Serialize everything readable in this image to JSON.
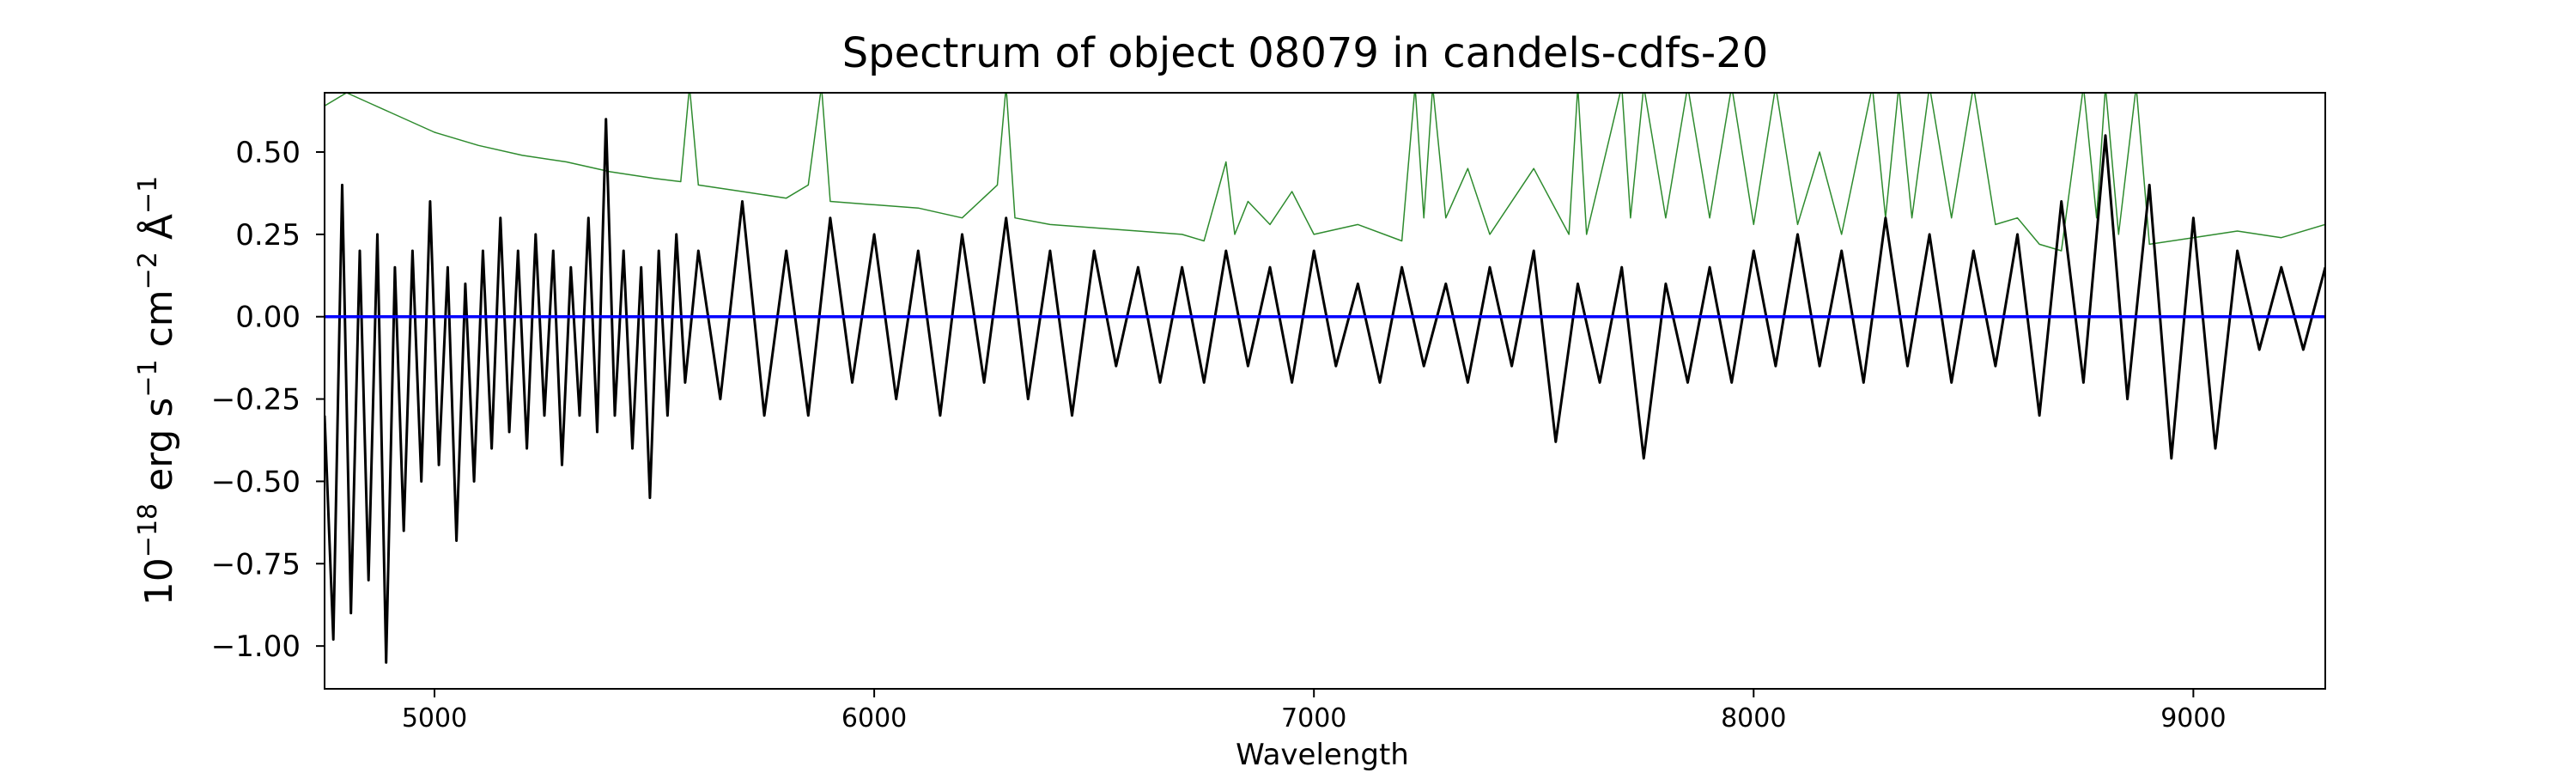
{
  "chart_data": {
    "type": "line",
    "title": "Spectrum of object 08079 in candels-cdfs-20",
    "xlabel": "Wavelength",
    "ylabel_base": "10",
    "ylabel_exp": "−18",
    "ylabel_units": [
      {
        "text": " erg s",
        "sup": "−1"
      },
      {
        "text": " cm",
        "sup": "−2"
      },
      {
        "text": " Å",
        "sup": "−1"
      }
    ],
    "xlim": [
      4750,
      9300
    ],
    "ylim": [
      -1.13,
      0.68
    ],
    "xticks": [
      5000,
      6000,
      7000,
      8000,
      9000
    ],
    "xtick_labels": [
      "5000",
      "6000",
      "7000",
      "8000",
      "9000"
    ],
    "yticks": [
      0.5,
      0.25,
      0.0,
      -0.25,
      -0.5,
      -0.75,
      -1.0
    ],
    "ytick_labels": [
      "0.50",
      "0.25",
      "0.00",
      "−0.25",
      "−0.50",
      "−0.75",
      "−1.00"
    ],
    "grid": false,
    "series": [
      {
        "role": "flux",
        "color": "#000000",
        "x": [
          4750,
          4770,
          4790,
          4810,
          4830,
          4850,
          4870,
          4890,
          4910,
          4930,
          4950,
          4970,
          4990,
          5010,
          5030,
          5050,
          5070,
          5090,
          5110,
          5130,
          5150,
          5170,
          5190,
          5210,
          5230,
          5250,
          5270,
          5290,
          5310,
          5330,
          5350,
          5370,
          5390,
          5410,
          5430,
          5450,
          5470,
          5490,
          5510,
          5530,
          5550,
          5570,
          5600,
          5650,
          5700,
          5750,
          5800,
          5850,
          5900,
          5950,
          6000,
          6050,
          6100,
          6150,
          6200,
          6250,
          6300,
          6350,
          6400,
          6450,
          6500,
          6550,
          6600,
          6650,
          6700,
          6750,
          6800,
          6850,
          6900,
          6950,
          7000,
          7050,
          7100,
          7150,
          7200,
          7250,
          7300,
          7350,
          7400,
          7450,
          7500,
          7550,
          7600,
          7650,
          7700,
          7750,
          7800,
          7850,
          7900,
          7950,
          8000,
          8050,
          8100,
          8150,
          8200,
          8250,
          8300,
          8350,
          8400,
          8450,
          8500,
          8550,
          8600,
          8650,
          8700,
          8750,
          8800,
          8850,
          8900,
          8950,
          9000,
          9050,
          9100,
          9150,
          9200,
          9250,
          9300
        ],
        "y": [
          -0.3,
          -0.98,
          0.4,
          -0.9,
          0.2,
          -0.8,
          0.25,
          -1.05,
          0.15,
          -0.65,
          0.2,
          -0.5,
          0.35,
          -0.45,
          0.15,
          -0.68,
          0.1,
          -0.5,
          0.2,
          -0.4,
          0.3,
          -0.35,
          0.2,
          -0.4,
          0.25,
          -0.3,
          0.2,
          -0.45,
          0.15,
          -0.3,
          0.3,
          -0.35,
          0.6,
          -0.3,
          0.2,
          -0.4,
          0.15,
          -0.55,
          0.2,
          -0.3,
          0.25,
          -0.2,
          0.2,
          -0.25,
          0.35,
          -0.3,
          0.2,
          -0.3,
          0.3,
          -0.2,
          0.25,
          -0.25,
          0.2,
          -0.3,
          0.25,
          -0.2,
          0.3,
          -0.25,
          0.2,
          -0.3,
          0.2,
          -0.15,
          0.15,
          -0.2,
          0.15,
          -0.2,
          0.2,
          -0.15,
          0.15,
          -0.2,
          0.2,
          -0.15,
          0.1,
          -0.2,
          0.15,
          -0.15,
          0.1,
          -0.2,
          0.15,
          -0.15,
          0.2,
          -0.38,
          0.1,
          -0.2,
          0.15,
          -0.43,
          0.1,
          -0.2,
          0.15,
          -0.2,
          0.2,
          -0.15,
          0.25,
          -0.15,
          0.2,
          -0.2,
          0.3,
          -0.15,
          0.25,
          -0.2,
          0.2,
          -0.15,
          0.25,
          -0.3,
          0.35,
          -0.2,
          0.55,
          -0.25,
          0.4,
          -0.43,
          0.3,
          -0.4,
          0.2,
          -0.1,
          0.15,
          -0.1,
          0.15
        ]
      },
      {
        "role": "error",
        "color": "#2e8b2e",
        "x": [
          4750,
          4800,
          4850,
          4900,
          5000,
          5100,
          5200,
          5300,
          5400,
          5500,
          5560,
          5580,
          5600,
          5700,
          5800,
          5850,
          5880,
          5900,
          6000,
          6100,
          6200,
          6280,
          6300,
          6320,
          6400,
          6500,
          6600,
          6700,
          6750,
          6800,
          6820,
          6850,
          6900,
          6950,
          7000,
          7100,
          7200,
          7230,
          7250,
          7270,
          7300,
          7350,
          7400,
          7500,
          7580,
          7600,
          7620,
          7700,
          7720,
          7750,
          7800,
          7850,
          7900,
          7950,
          8000,
          8050,
          8100,
          8150,
          8200,
          8270,
          8300,
          8330,
          8360,
          8400,
          8450,
          8500,
          8550,
          8600,
          8650,
          8700,
          8750,
          8780,
          8800,
          8830,
          8870,
          8900,
          9000,
          9100,
          9200,
          9300
        ],
        "y": [
          0.64,
          0.68,
          0.65,
          0.62,
          0.56,
          0.52,
          0.49,
          0.47,
          0.44,
          0.42,
          0.41,
          0.7,
          0.4,
          0.38,
          0.36,
          0.4,
          0.7,
          0.35,
          0.34,
          0.33,
          0.3,
          0.4,
          0.7,
          0.3,
          0.28,
          0.27,
          0.26,
          0.25,
          0.23,
          0.47,
          0.25,
          0.35,
          0.28,
          0.38,
          0.25,
          0.28,
          0.23,
          0.7,
          0.3,
          0.7,
          0.3,
          0.45,
          0.25,
          0.45,
          0.25,
          0.7,
          0.25,
          0.7,
          0.3,
          0.7,
          0.3,
          0.7,
          0.3,
          0.7,
          0.28,
          0.7,
          0.28,
          0.5,
          0.25,
          0.7,
          0.3,
          0.7,
          0.3,
          0.7,
          0.3,
          0.7,
          0.28,
          0.3,
          0.22,
          0.2,
          0.7,
          0.3,
          0.7,
          0.25,
          0.7,
          0.22,
          0.24,
          0.26,
          0.24,
          0.28
        ]
      },
      {
        "role": "zero",
        "color": "#0000ff",
        "x": [
          4750,
          9300
        ],
        "y": [
          0,
          0
        ]
      }
    ]
  }
}
